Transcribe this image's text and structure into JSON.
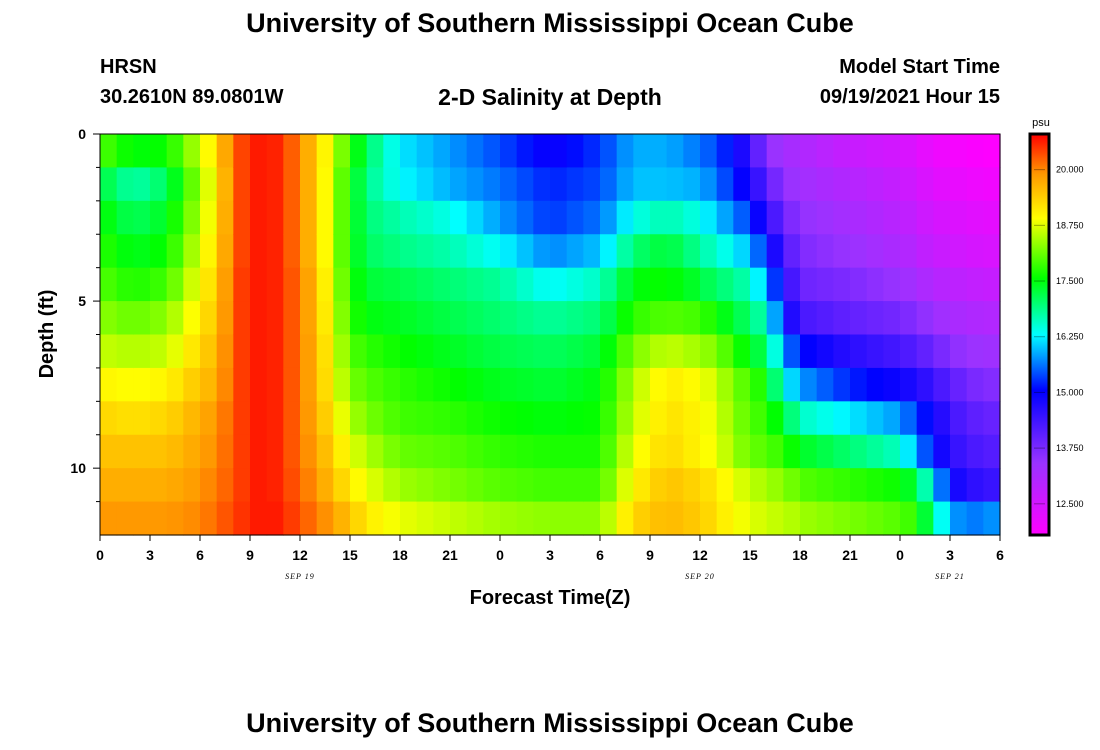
{
  "header": {
    "title": "University of Southern Mississippi Ocean Cube",
    "station": "HRSN",
    "coordinates": "30.2610N  89.0801W",
    "model_start_label": "Model Start Time",
    "model_start_value": "09/19/2021 Hour 15"
  },
  "footer": {
    "title": "University of Southern Mississippi Ocean Cube"
  },
  "chart_data": {
    "type": "heatmap",
    "title": "2-D Salinity at Depth",
    "xlabel": "Forecast Time(Z)",
    "ylabel": "Depth (ft)",
    "x_tick_labels": [
      "0",
      "3",
      "6",
      "9",
      "12",
      "15",
      "18",
      "21",
      "0",
      "3",
      "6",
      "9",
      "12",
      "15",
      "18",
      "21",
      "0",
      "3",
      "6"
    ],
    "x_range_hours": [
      0,
      54
    ],
    "day_labels": [
      {
        "label": "SEP 19",
        "hour": 12
      },
      {
        "label": "SEP 20",
        "hour": 36
      },
      {
        "label": "SEP 21",
        "hour": 51
      }
    ],
    "y_tick_labels": [
      "0",
      "5",
      "10"
    ],
    "y_tick_values": [
      0,
      5,
      10
    ],
    "y_range_ft": [
      0,
      12
    ],
    "colorbar": {
      "unit": "psu",
      "tick_labels": [
        "20.000",
        "18.750",
        "17.500",
        "16.250",
        "15.000",
        "13.750",
        "12.500"
      ],
      "tick_values": [
        20.0,
        18.75,
        17.5,
        16.25,
        15.0,
        13.75,
        12.5
      ],
      "range": [
        11.8,
        20.8
      ]
    },
    "cell_size": {
      "hours": 1,
      "depth_ft": 1
    },
    "profiles": [
      {
        "hour": 0,
        "values": [
          18.0,
          17.3,
          17.6,
          17.8,
          18.0,
          18.3,
          18.6,
          19.0,
          19.3,
          19.5,
          19.7,
          19.9
        ]
      },
      {
        "hour": 2,
        "values": [
          17.5,
          16.7,
          17.1,
          17.4,
          17.7,
          18.1,
          18.5,
          18.9,
          19.2,
          19.5,
          19.7,
          19.9
        ]
      },
      {
        "hour": 4,
        "values": [
          17.6,
          17.1,
          17.4,
          17.6,
          17.9,
          18.3,
          18.6,
          19.0,
          19.3,
          19.5,
          19.7,
          19.9
        ]
      },
      {
        "hour": 6,
        "values": [
          18.6,
          18.4,
          18.5,
          18.7,
          18.9,
          19.1,
          19.3,
          19.5,
          19.7,
          19.8,
          19.9,
          20.0
        ]
      },
      {
        "hour": 7,
        "values": [
          19.3,
          19.1,
          19.2,
          19.3,
          19.4,
          19.5,
          19.6,
          19.7,
          19.9,
          20.0,
          20.1,
          20.2
        ]
      },
      {
        "hour": 8,
        "values": [
          20.2,
          20.2,
          20.2,
          20.2,
          20.3,
          20.3,
          20.3,
          20.3,
          20.3,
          20.3,
          20.3,
          20.4
        ]
      },
      {
        "hour": 9,
        "values": [
          20.6,
          20.6,
          20.6,
          20.6,
          20.6,
          20.6,
          20.6,
          20.6,
          20.6,
          20.6,
          20.6,
          20.6
        ]
      },
      {
        "hour": 10,
        "values": [
          20.7,
          20.7,
          20.7,
          20.7,
          20.7,
          20.7,
          20.7,
          20.7,
          20.7,
          20.7,
          20.7,
          20.7
        ]
      },
      {
        "hour": 11,
        "values": [
          20.5,
          20.5,
          20.5,
          20.5,
          20.5,
          20.5,
          20.5,
          20.5,
          20.5,
          20.5,
          20.5,
          20.6
        ]
      },
      {
        "hour": 12,
        "values": [
          20.0,
          20.0,
          20.0,
          20.0,
          20.1,
          20.1,
          20.1,
          20.1,
          20.1,
          20.1,
          20.2,
          20.3
        ]
      },
      {
        "hour": 13,
        "values": [
          19.4,
          19.4,
          19.4,
          19.4,
          19.5,
          19.5,
          19.6,
          19.6,
          19.7,
          19.8,
          19.9,
          20.1
        ]
      },
      {
        "hour": 14,
        "values": [
          18.6,
          18.5,
          18.5,
          18.5,
          18.6,
          18.7,
          18.8,
          18.9,
          19.1,
          19.3,
          19.5,
          19.8
        ]
      },
      {
        "hour": 15,
        "values": [
          17.8,
          17.6,
          17.6,
          17.6,
          17.7,
          17.8,
          18.0,
          18.2,
          18.5,
          18.8,
          19.1,
          19.5
        ]
      },
      {
        "hour": 16,
        "values": [
          17.1,
          16.9,
          17.0,
          17.1,
          17.3,
          17.5,
          17.8,
          18.0,
          18.2,
          18.5,
          18.8,
          19.1
        ]
      },
      {
        "hour": 18,
        "values": [
          16.2,
          16.3,
          16.7,
          16.9,
          17.2,
          17.4,
          17.6,
          17.8,
          17.9,
          18.1,
          18.4,
          18.8
        ]
      },
      {
        "hour": 21,
        "values": [
          15.8,
          15.9,
          16.4,
          16.7,
          17.0,
          17.2,
          17.4,
          17.6,
          17.8,
          18.0,
          18.2,
          18.6
        ]
      },
      {
        "hour": 24,
        "values": [
          15.4,
          15.6,
          15.8,
          16.3,
          16.8,
          17.0,
          17.2,
          17.4,
          17.6,
          17.8,
          18.0,
          18.4
        ]
      },
      {
        "hour": 27,
        "values": [
          14.9,
          15.2,
          15.3,
          15.7,
          16.3,
          16.8,
          17.1,
          17.3,
          17.5,
          17.7,
          17.9,
          18.3
        ]
      },
      {
        "hour": 30,
        "values": [
          15.3,
          15.4,
          15.6,
          16.0,
          16.6,
          17.0,
          17.3,
          17.5,
          17.6,
          17.7,
          17.9,
          18.3
        ]
      },
      {
        "hour": 32,
        "values": [
          15.9,
          16.0,
          16.4,
          17.0,
          17.5,
          17.8,
          18.2,
          18.5,
          18.6,
          18.8,
          19.0,
          19.3
        ]
      },
      {
        "hour": 34,
        "values": [
          15.9,
          16.0,
          16.7,
          17.3,
          17.6,
          18.0,
          18.6,
          19.1,
          19.2,
          19.3,
          19.5,
          19.6
        ]
      },
      {
        "hour": 36,
        "values": [
          15.6,
          15.9,
          16.4,
          16.8,
          17.3,
          17.9,
          18.4,
          18.9,
          19.0,
          19.0,
          19.3,
          19.4
        ]
      },
      {
        "hour": 37,
        "values": [
          15.4,
          15.6,
          16.0,
          16.5,
          17.0,
          17.6,
          18.2,
          18.6,
          18.7,
          18.8,
          19.1,
          19.2
        ]
      },
      {
        "hour": 38,
        "values": [
          15.0,
          15.2,
          15.7,
          16.3,
          16.9,
          17.3,
          17.8,
          18.2,
          18.3,
          18.4,
          18.8,
          18.9
        ]
      },
      {
        "hour": 39,
        "values": [
          14.5,
          14.8,
          15.3,
          15.9,
          16.6,
          17.0,
          17.4,
          17.9,
          18.0,
          18.1,
          18.6,
          18.8
        ]
      },
      {
        "hour": 40,
        "values": [
          13.5,
          14.1,
          14.6,
          15.2,
          15.9,
          16.6,
          17.1,
          17.6,
          17.8,
          18.0,
          18.4,
          18.6
        ]
      },
      {
        "hour": 41,
        "values": [
          13.3,
          13.5,
          13.9,
          14.3,
          14.7,
          15.1,
          15.8,
          16.4,
          17.3,
          17.8,
          18.3,
          18.6
        ]
      },
      {
        "hour": 42,
        "values": [
          13.1,
          13.3,
          13.5,
          13.7,
          13.9,
          14.3,
          15.1,
          15.8,
          16.6,
          17.4,
          18.0,
          18.4
        ]
      },
      {
        "hour": 45,
        "values": [
          12.7,
          13.0,
          13.2,
          13.4,
          13.7,
          14.0,
          14.6,
          15.2,
          16.2,
          17.0,
          17.8,
          18.2
        ]
      },
      {
        "hour": 48,
        "values": [
          12.5,
          12.7,
          12.9,
          13.1,
          13.4,
          13.8,
          14.3,
          14.9,
          15.8,
          16.6,
          17.6,
          18.0
        ]
      },
      {
        "hour": 49,
        "values": [
          12.3,
          12.5,
          12.7,
          12.9,
          13.2,
          13.6,
          14.1,
          14.7,
          15.3,
          15.8,
          17.2,
          17.8
        ]
      },
      {
        "hour": 50,
        "values": [
          12.1,
          12.3,
          12.5,
          12.7,
          13.0,
          13.4,
          13.9,
          14.4,
          14.9,
          15.1,
          16.2,
          16.8
        ]
      },
      {
        "hour": 51,
        "values": [
          12.0,
          12.2,
          12.4,
          12.6,
          12.9,
          13.2,
          13.6,
          14.1,
          14.4,
          14.6,
          15.0,
          15.9
        ]
      },
      {
        "hour": 52,
        "values": [
          11.9,
          12.1,
          12.3,
          12.5,
          12.8,
          13.1,
          13.4,
          13.8,
          14.1,
          14.3,
          14.6,
          15.6
        ]
      },
      {
        "hour": 54,
        "values": [
          11.8,
          12.0,
          12.2,
          12.4,
          12.7,
          13.0,
          13.3,
          13.6,
          13.9,
          14.1,
          14.4,
          15.8
        ]
      }
    ]
  }
}
